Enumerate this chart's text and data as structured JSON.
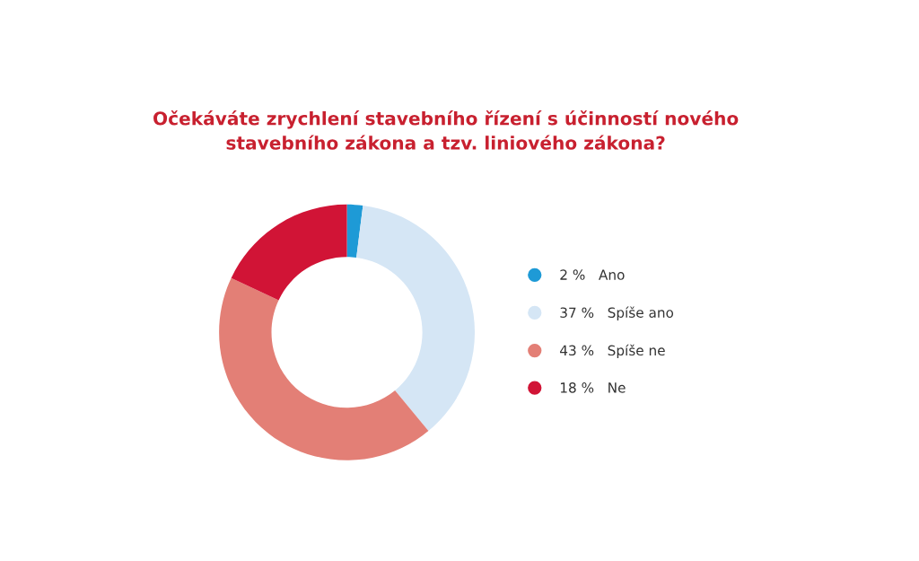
{
  "chart_data": {
    "type": "donut",
    "title": "Očekáváte zrychlení stavebního řízení s účinností nového\nstavebního zákona a tzv. liniového zákona?",
    "categories": [
      "Ano",
      "Spíše ano",
      "Spíše ne",
      "Ne"
    ],
    "values": [
      2,
      37,
      43,
      18
    ],
    "colors": [
      "#1e9ad6",
      "#d5e6f5",
      "#e37f76",
      "#d11436"
    ],
    "value_labels": [
      "2 %",
      "37 %",
      "43 %",
      "18 %"
    ],
    "legend": "right"
  }
}
